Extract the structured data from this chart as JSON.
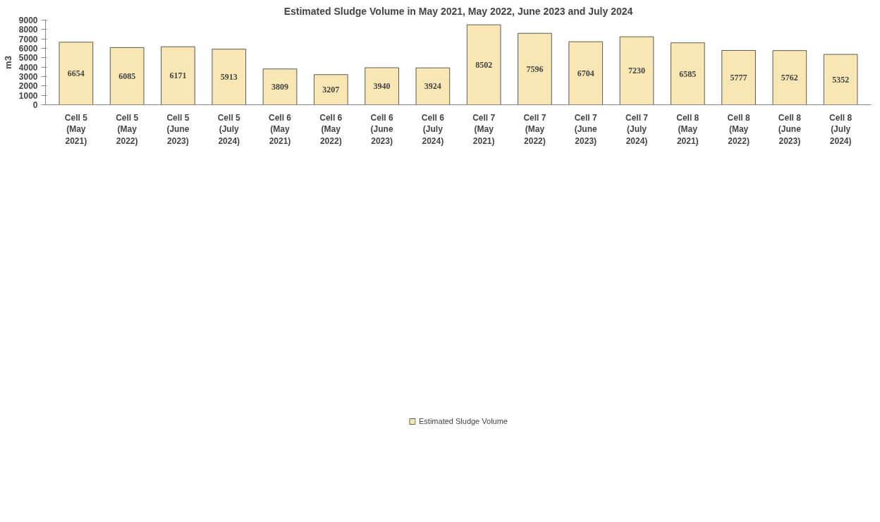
{
  "chart_data": {
    "type": "bar",
    "title": "Estimated Sludge Volume in May 2021, May 2022, June 2023 and July 2024",
    "ylabel": "m3",
    "categories": [
      "Cell 5\n(May\n2021)",
      "Cell 5\n(May\n2022)",
      "Cell 5\n(June\n2023)",
      "Cell 5\n(July\n2024)",
      "Cell 6\n(May\n2021)",
      "Cell 6\n(May\n2022)",
      "Cell 6\n(June\n2023)",
      "Cell 6\n(July\n2024)",
      "Cell 7\n(May\n2021)",
      "Cell 7\n(May\n2022)",
      "Cell 7\n(June\n2023)",
      "Cell 7\n(July\n2024)",
      "Cell 8\n(May\n2021)",
      "Cell 8\n(May\n2022)",
      "Cell 8\n(June\n2023)",
      "Cell 8\n(July\n2024)"
    ],
    "series": [
      {
        "name": "Estimated Sludge Volume",
        "color": "#f8e7b4",
        "values": [
          6654,
          6085,
          6171,
          5913,
          3809,
          3207,
          3940,
          3924,
          8502,
          7596,
          6704,
          7230,
          6585,
          5777,
          5762,
          5352
        ]
      }
    ],
    "ylim": [
      0,
      9000
    ],
    "yticks": [
      0,
      1000,
      2000,
      3000,
      4000,
      5000,
      6000,
      7000,
      8000,
      9000
    ],
    "data_labels": true,
    "legend": "bottom",
    "grid": false
  }
}
